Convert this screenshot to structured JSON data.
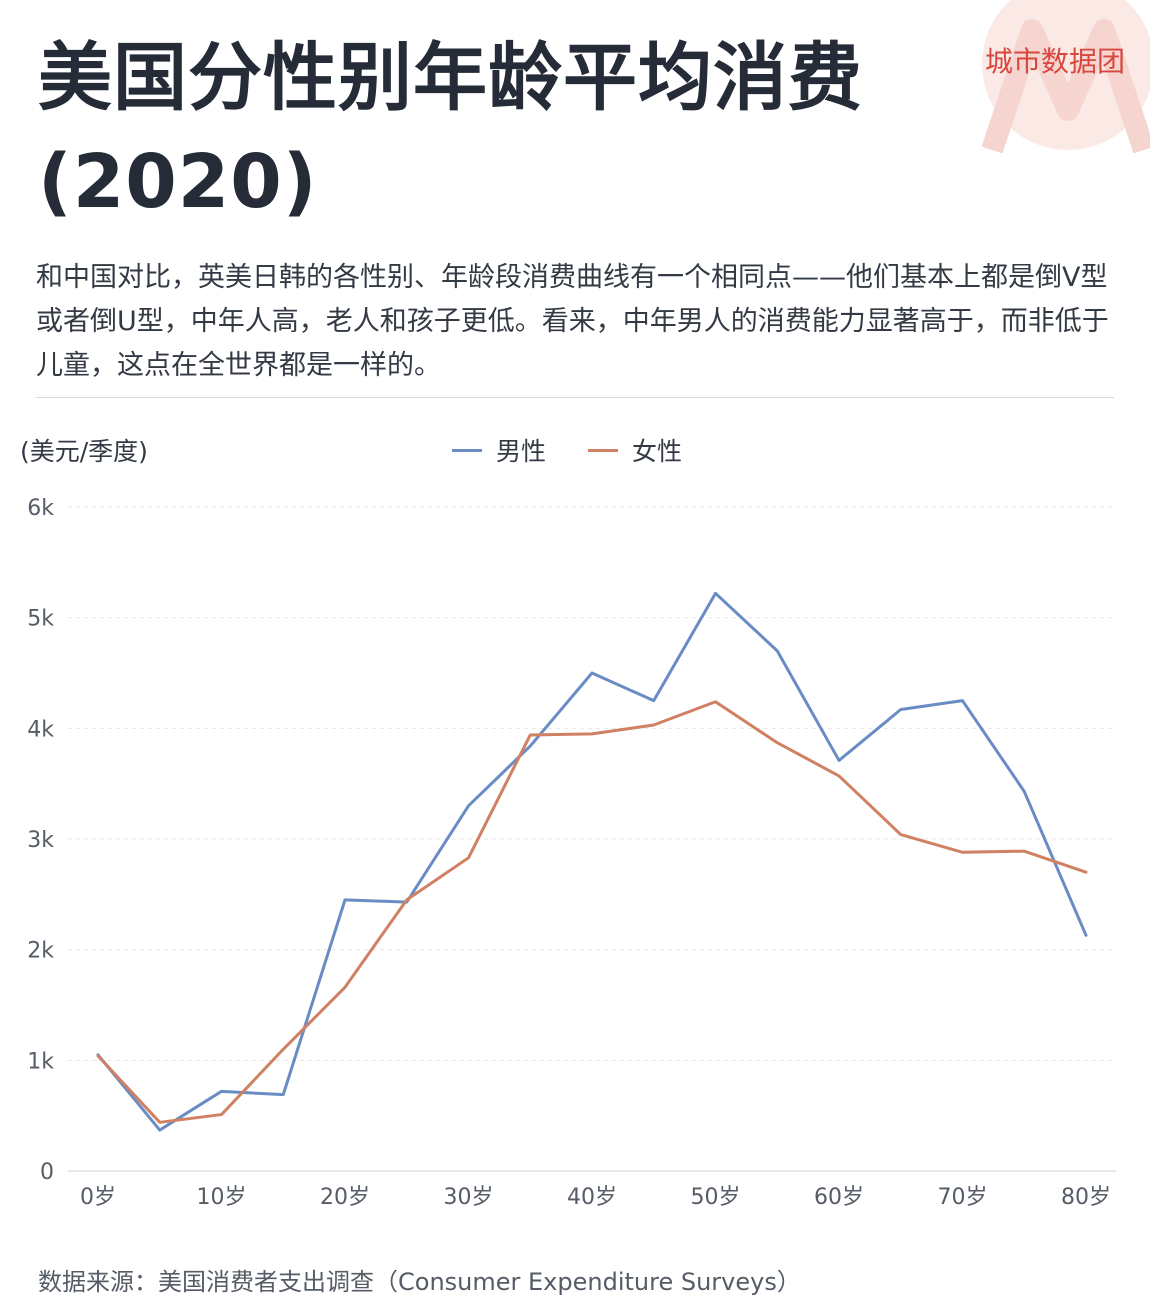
{
  "title": "美国分性别年龄平均消费(2020)",
  "brand": "城市数据团",
  "description": "和中国对比，英美日韩的各性别、年龄段消费曲线有一个相同点——他们基本上都是倒V型或者倒U型，中年人高，老人和孩子更低。看来，中年男人的消费能力显著高于，而非低于儿童，这点在全世界都是一样的。",
  "source": "数据来源：美国消费者支出调查（Consumer Expenditure Surveys）",
  "colors": {
    "male": "#6a8cc4",
    "female": "#d08063",
    "brand": "#d7473e",
    "grid": "#e6e6e6"
  },
  "chart_data": {
    "type": "line",
    "unit_label": "(美元/季度)",
    "x": [
      0,
      5,
      10,
      15,
      20,
      25,
      30,
      35,
      40,
      45,
      50,
      55,
      60,
      65,
      70,
      75,
      80
    ],
    "xticks": [
      "0岁",
      "10岁",
      "20岁",
      "30岁",
      "40岁",
      "50岁",
      "60岁",
      "70岁",
      "80岁"
    ],
    "yticks": [
      "0",
      "1k",
      "2k",
      "3k",
      "4k",
      "5k",
      "6k"
    ],
    "ylim": [
      0,
      6000
    ],
    "xlim": [
      0,
      80
    ],
    "grid": true,
    "legend_position": "top-center",
    "series": [
      {
        "name": "男性",
        "color": "#6a8cc4",
        "values": [
          1050,
          370,
          720,
          690,
          2450,
          2430,
          3300,
          3840,
          4500,
          4250,
          5220,
          4700,
          3710,
          4170,
          4250,
          3430,
          2130
        ]
      },
      {
        "name": "女性",
        "color": "#d08063",
        "values": [
          1040,
          440,
          510,
          1100,
          1660,
          2450,
          2830,
          3940,
          3950,
          4030,
          4240,
          3870,
          3570,
          3040,
          2880,
          2890,
          2700
        ]
      }
    ]
  }
}
